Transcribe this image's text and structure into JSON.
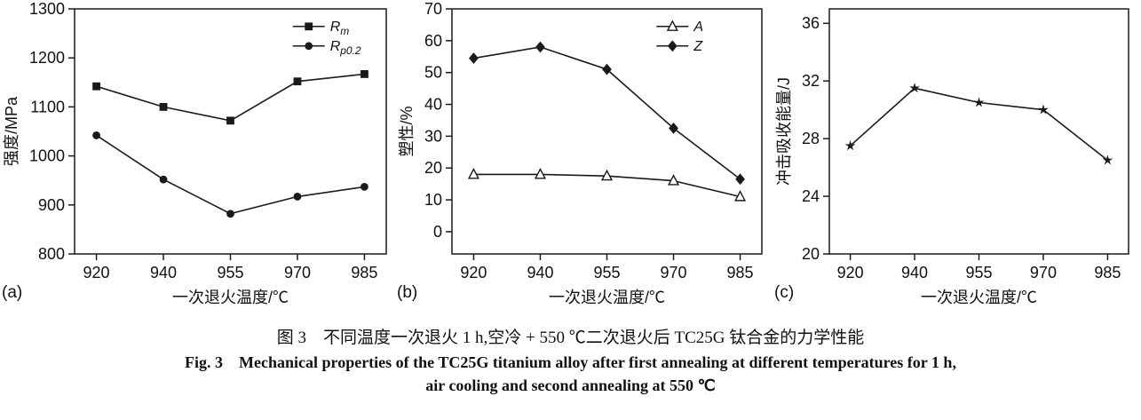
{
  "chart_data": [
    {
      "type": "line",
      "panel_label": "(a)",
      "xlabel": "一次退火温度/℃",
      "ylabel": "强度/MPa",
      "categories": [
        "920",
        "940",
        "955",
        "970",
        "985"
      ],
      "ylim": [
        800,
        1300
      ],
      "yticks": [
        800,
        900,
        1000,
        1100,
        1200,
        1300
      ],
      "grid": false,
      "legend": true,
      "legend_position": "top-right",
      "series": [
        {
          "name": "Rm",
          "label_main": "R",
          "label_sub": "m",
          "marker": "square",
          "values": [
            1142,
            1100,
            1072,
            1152,
            1167
          ]
        },
        {
          "name": "Rp0.2",
          "label_main": "R",
          "label_sub": "p0.2",
          "marker": "circle",
          "values": [
            1042,
            952,
            882,
            917,
            937
          ]
        }
      ]
    },
    {
      "type": "line",
      "panel_label": "(b)",
      "xlabel": "一次退火温度/℃",
      "ylabel": "塑性/%",
      "categories": [
        "920",
        "940",
        "955",
        "970",
        "985"
      ],
      "ylim": [
        -7,
        70
      ],
      "yticks": [
        0,
        10,
        20,
        30,
        40,
        50,
        60,
        70
      ],
      "grid": false,
      "legend": true,
      "legend_position": "top-right",
      "series": [
        {
          "name": "A",
          "label_main": "A",
          "label_sub": "",
          "marker": "triangle-open",
          "values": [
            18,
            18,
            17.5,
            16,
            11
          ]
        },
        {
          "name": "Z",
          "label_main": "Z",
          "label_sub": "",
          "marker": "diamond",
          "values": [
            54.5,
            58,
            51,
            32.5,
            16.5
          ]
        }
      ]
    },
    {
      "type": "line",
      "panel_label": "(c)",
      "xlabel": "一次退火温度/℃",
      "ylabel": "冲击吸收能量/J",
      "categories": [
        "920",
        "940",
        "955",
        "970",
        "985"
      ],
      "ylim": [
        20,
        37
      ],
      "yticks": [
        20,
        24,
        28,
        32,
        36
      ],
      "grid": false,
      "legend": false,
      "legend_position": "",
      "series": [
        {
          "name": "冲击吸收能量",
          "label_main": "",
          "label_sub": "",
          "marker": "star",
          "values": [
            27.5,
            31.5,
            30.5,
            30,
            26.5
          ]
        }
      ]
    }
  ],
  "caption": {
    "line_zh": "图 3　不同温度一次退火 1 h,空冷 + 550 ℃二次退火后 TC25G 钛合金的力学性能",
    "line_en_1": "Fig. 3　Mechanical properties of the TC25G titanium alloy after first annealing at different temperatures for 1 h,",
    "line_en_2": "air cooling and second annealing at 550 ℃"
  },
  "colors": {
    "line": "#1a1a1a",
    "background": "#ffffff"
  }
}
